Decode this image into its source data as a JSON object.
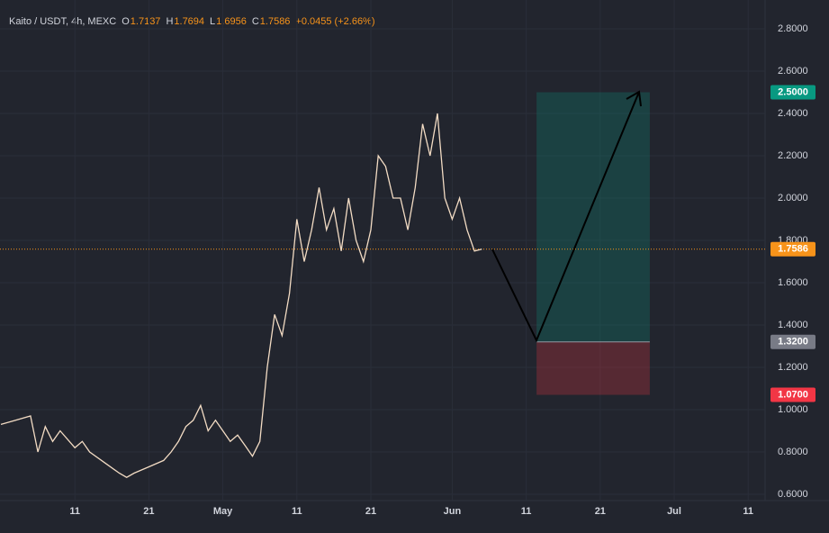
{
  "chart_data": {
    "type": "line",
    "title": "Kaito / USDT, 4h, MEXC",
    "ohlc": {
      "open_label": "O",
      "open": 1.7137,
      "high_label": "H",
      "high": 1.7694,
      "low_label": "L",
      "low": 1.6956,
      "close_label": "C",
      "close": 1.7586,
      "change": "+0.0455 (+2.66%)"
    },
    "x": [
      0,
      2,
      4,
      5,
      6,
      7,
      8,
      10,
      11,
      12,
      14,
      16,
      17,
      18,
      20,
      22,
      23,
      24,
      25,
      26,
      27,
      28,
      29,
      30,
      31,
      32,
      33,
      34,
      35,
      36,
      37,
      38,
      39,
      40,
      41,
      42,
      43,
      44,
      45,
      46,
      47,
      48,
      49,
      50,
      51,
      52,
      53,
      54,
      55,
      56,
      57,
      58,
      59,
      60,
      61,
      62,
      63,
      64,
      65
    ],
    "series": [
      {
        "color": "#f3dcc4",
        "values": [
          0.93,
          0.95,
          0.97,
          0.8,
          0.92,
          0.85,
          0.9,
          0.82,
          0.85,
          0.8,
          0.75,
          0.7,
          0.68,
          0.7,
          0.73,
          0.76,
          0.8,
          0.85,
          0.92,
          0.95,
          1.02,
          0.9,
          0.95,
          0.9,
          0.85,
          0.88,
          0.83,
          0.78,
          0.85,
          1.2,
          1.45,
          1.35,
          1.55,
          1.9,
          1.7,
          1.85,
          2.05,
          1.85,
          1.95,
          1.75,
          2.0,
          1.8,
          1.7,
          1.85,
          2.2,
          2.15,
          2.0,
          2.0,
          1.85,
          2.05,
          2.35,
          2.2,
          2.4,
          2.0,
          1.9,
          2.0,
          1.85,
          1.75,
          1.7586
        ]
      }
    ],
    "last_price": {
      "value": 1.7586,
      "label": "1.7586",
      "color": "#f7931a"
    },
    "position": {
      "start": 72.4,
      "end": 87.7,
      "target": {
        "value": 2.5,
        "label": "2.5000",
        "color": "#089981"
      },
      "entry": {
        "value": 1.32,
        "label": "1.3200",
        "color": "#787b86"
      },
      "stop": {
        "value": 1.07,
        "label": "1.0700",
        "color": "#f23645"
      }
    },
    "xlim": [
      -1,
      102
    ],
    "xticks": [
      {
        "value": 10,
        "label": "11"
      },
      {
        "value": 20,
        "label": "21"
      },
      {
        "value": 30,
        "label": "May"
      },
      {
        "value": 40,
        "label": "11"
      },
      {
        "value": 50,
        "label": "21"
      },
      {
        "value": 61,
        "label": "Jun"
      },
      {
        "value": 71,
        "label": "11"
      },
      {
        "value": 81,
        "label": "21"
      },
      {
        "value": 91,
        "label": "Jul"
      },
      {
        "value": 101,
        "label": "11"
      }
    ],
    "ylim": [
      0.6,
      2.8
    ],
    "yticks": [
      {
        "value": 0.6,
        "label": "0.6000"
      },
      {
        "value": 0.8,
        "label": "0.8000"
      },
      {
        "value": 1.0,
        "label": "1.0000"
      },
      {
        "value": 1.2,
        "label": "1.2000"
      },
      {
        "value": 1.4,
        "label": "1.4000"
      },
      {
        "value": 1.6,
        "label": "1.6000"
      },
      {
        "value": 1.8,
        "label": "1.8000"
      },
      {
        "value": 2.0,
        "label": "2.0000"
      },
      {
        "value": 2.2,
        "label": "2.2000"
      },
      {
        "value": 2.4,
        "label": "2.4000"
      },
      {
        "value": 2.6,
        "label": "2.6000"
      },
      {
        "value": 2.8,
        "label": "2.8000"
      }
    ],
    "grid": true
  }
}
